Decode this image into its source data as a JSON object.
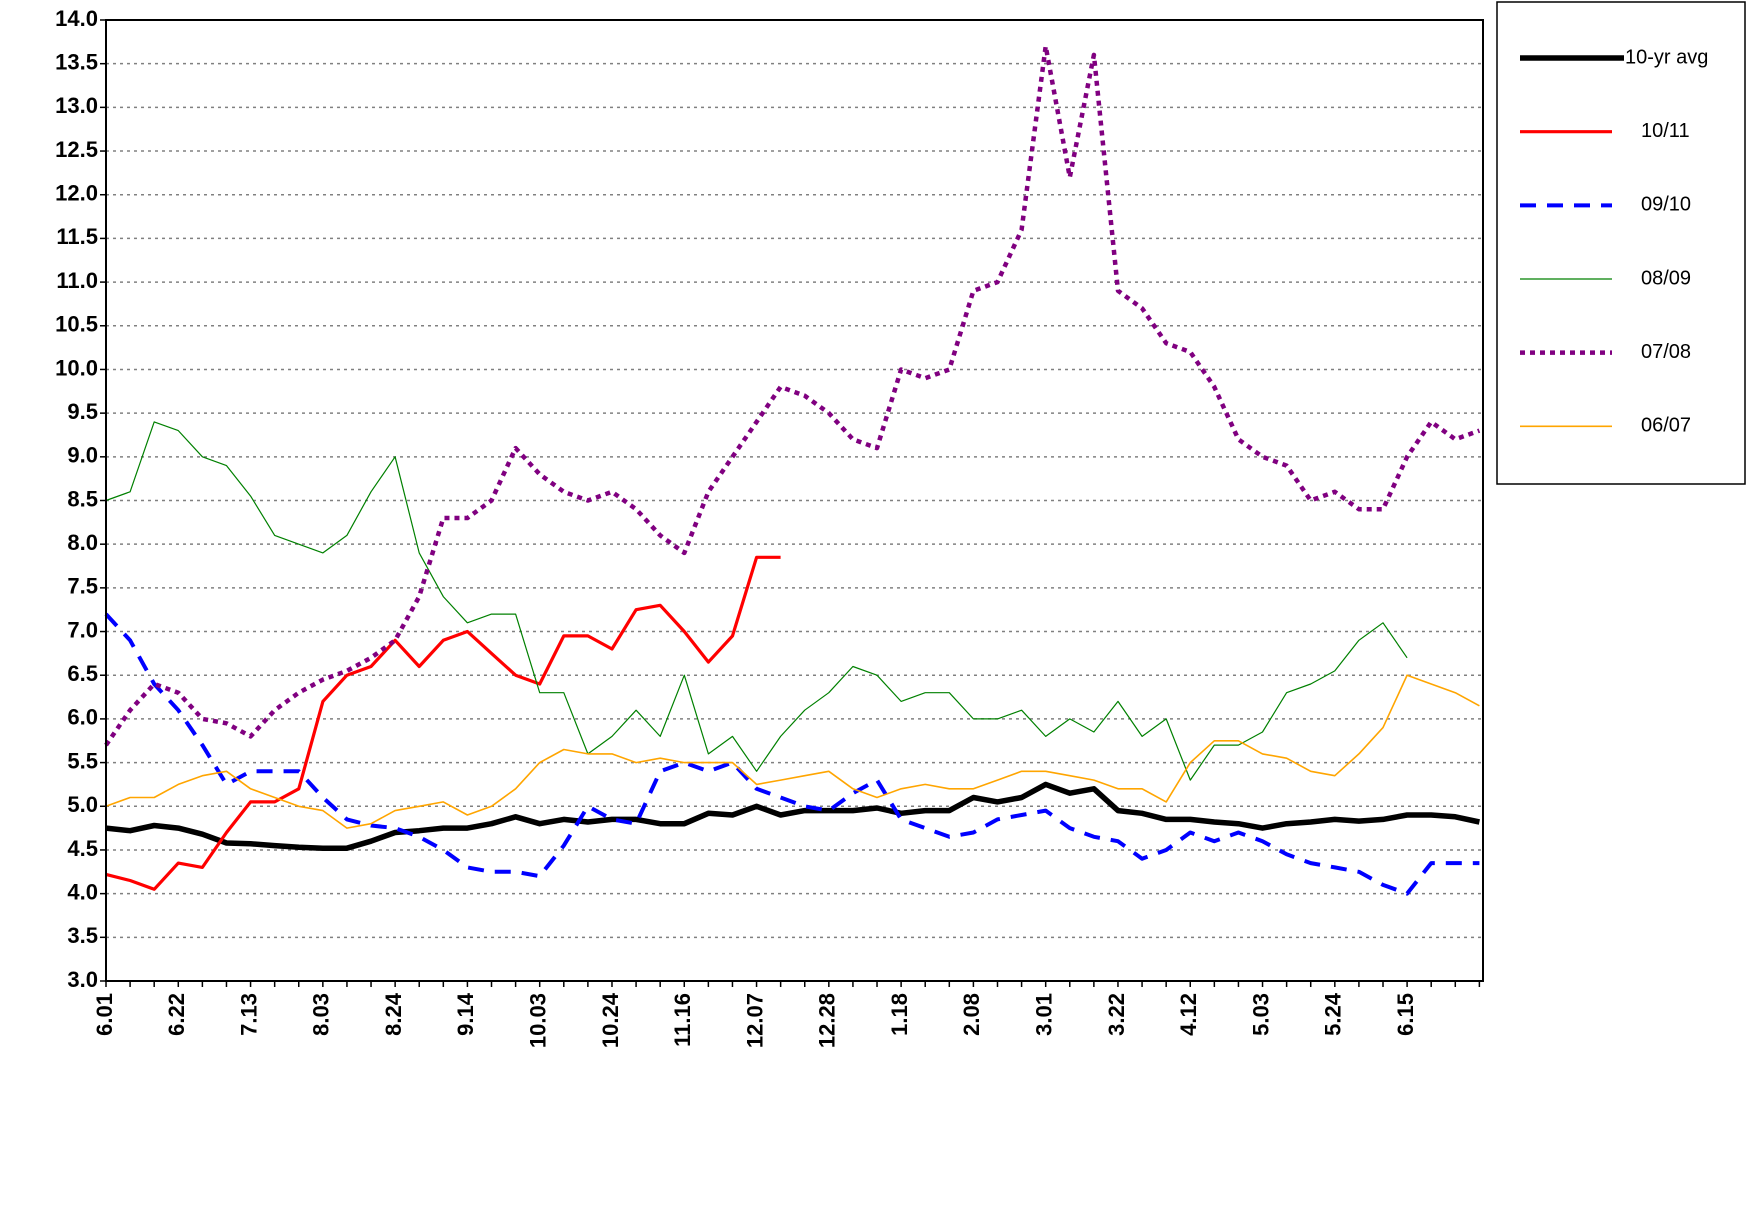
{
  "chart_data": {
    "type": "line",
    "categories": [
      "6.01",
      null,
      null,
      "6.22",
      null,
      null,
      "7.13",
      null,
      null,
      "8.03",
      null,
      null,
      "8.24",
      null,
      null,
      "9.14",
      null,
      null,
      "10.03",
      null,
      null,
      "10.24",
      null,
      null,
      "11.16",
      null,
      null,
      "12.07",
      null,
      null,
      "12.28",
      null,
      null,
      "1.18",
      null,
      null,
      "2.08",
      null,
      null,
      "3.01",
      null,
      null,
      "3.22",
      null,
      null,
      "4.12",
      null,
      null,
      "5.03",
      null,
      null,
      "5.24",
      null,
      null,
      "6.15",
      null,
      null,
      null
    ],
    "series": [
      {
        "name": "10-yr avg",
        "color": "#000000",
        "style": "bold",
        "values": [
          4.75,
          4.72,
          4.78,
          4.75,
          4.68,
          4.58,
          4.57,
          4.55,
          4.53,
          4.52,
          4.52,
          4.6,
          4.7,
          4.72,
          4.75,
          4.75,
          4.8,
          4.88,
          4.8,
          4.85,
          4.82,
          4.85,
          4.85,
          4.8,
          4.8,
          4.92,
          4.9,
          5.0,
          4.9,
          4.95,
          4.95,
          4.95,
          4.98,
          4.92,
          4.95,
          4.95,
          5.1,
          5.05,
          5.1,
          5.25,
          5.15,
          5.2,
          4.95,
          4.92,
          4.85,
          4.85,
          4.82,
          4.8,
          4.75,
          4.8,
          4.82,
          4.85,
          4.83,
          4.85,
          4.9,
          4.9,
          4.88,
          4.82
        ]
      },
      {
        "name": "10/11",
        "color": "#ff0000",
        "style": "solid",
        "values": [
          4.22,
          4.15,
          4.05,
          4.35,
          4.3,
          4.7,
          5.05,
          5.05,
          5.2,
          6.2,
          6.5,
          6.6,
          6.9,
          6.6,
          6.9,
          7.0,
          6.75,
          6.5,
          6.4,
          6.95,
          6.95,
          6.8,
          7.25,
          7.3,
          7.0,
          6.65,
          6.95,
          7.85,
          7.85,
          null,
          null,
          null,
          null,
          null,
          null,
          null,
          null,
          null,
          null,
          null,
          null,
          null,
          null,
          null,
          null,
          null,
          null,
          null,
          null,
          null,
          null,
          null,
          null,
          null,
          null,
          null,
          null,
          null
        ]
      },
      {
        "name": "09/10",
        "color": "#0000ff",
        "style": "dashed",
        "values": [
          7.2,
          6.9,
          6.4,
          6.1,
          5.7,
          5.25,
          5.4,
          5.4,
          5.4,
          5.1,
          4.85,
          4.78,
          4.75,
          4.65,
          4.5,
          4.3,
          4.25,
          4.25,
          4.2,
          4.55,
          5.0,
          4.85,
          4.8,
          5.4,
          5.5,
          5.4,
          5.5,
          5.2,
          5.1,
          5.0,
          4.95,
          5.15,
          5.3,
          4.85,
          4.75,
          4.65,
          4.7,
          4.85,
          4.9,
          4.95,
          4.75,
          4.65,
          4.6,
          4.4,
          4.5,
          4.7,
          4.6,
          4.7,
          4.6,
          4.45,
          4.35,
          4.3,
          4.25,
          4.1,
          4.0,
          4.35,
          4.35,
          4.35
        ]
      },
      {
        "name": "08/09",
        "color": "#008000",
        "style": "thin",
        "values": [
          8.5,
          8.6,
          9.4,
          9.3,
          9.0,
          8.9,
          8.55,
          8.1,
          8.0,
          7.9,
          8.1,
          8.6,
          9.0,
          7.9,
          7.4,
          7.1,
          7.2,
          7.2,
          6.3,
          6.3,
          5.6,
          5.8,
          6.1,
          5.8,
          6.5,
          5.6,
          5.8,
          5.4,
          5.8,
          6.1,
          6.3,
          6.6,
          6.5,
          6.2,
          6.3,
          6.3,
          6.0,
          6.0,
          6.1,
          5.8,
          6.0,
          5.85,
          6.2,
          5.8,
          6.0,
          5.3,
          5.7,
          5.7,
          5.85,
          6.3,
          6.4,
          6.55,
          6.9,
          7.1,
          6.7,
          null,
          null,
          null
        ]
      },
      {
        "name": "07/08",
        "color": "#800080",
        "style": "dotted",
        "values": [
          5.7,
          6.1,
          6.4,
          6.3,
          6.0,
          5.95,
          5.8,
          6.1,
          6.3,
          6.45,
          6.55,
          6.7,
          6.9,
          7.4,
          8.3,
          8.3,
          8.5,
          9.1,
          8.8,
          8.6,
          8.5,
          8.6,
          8.4,
          8.1,
          7.9,
          8.6,
          9.0,
          9.4,
          9.8,
          9.7,
          9.5,
          9.2,
          9.1,
          10.0,
          9.9,
          10.0,
          10.9,
          11.0,
          11.6,
          13.7,
          12.2,
          13.6,
          10.9,
          10.7,
          10.3,
          10.2,
          9.8,
          9.2,
          9.0,
          8.9,
          8.5,
          8.6,
          8.4,
          8.4,
          9.0,
          9.4,
          9.2,
          9.3
        ]
      },
      {
        "name": "06/07",
        "color": "#ffa500",
        "style": "solid-thin",
        "values": [
          5.0,
          5.1,
          5.1,
          5.25,
          5.35,
          5.4,
          5.2,
          5.1,
          5.0,
          4.95,
          4.75,
          4.8,
          4.95,
          5.0,
          5.05,
          4.9,
          5.0,
          5.2,
          5.5,
          5.65,
          5.6,
          5.6,
          5.5,
          5.55,
          5.5,
          5.5,
          5.5,
          5.25,
          5.3,
          5.35,
          5.4,
          5.2,
          5.1,
          5.2,
          5.25,
          5.2,
          5.2,
          5.3,
          5.4,
          5.4,
          5.35,
          5.3,
          5.2,
          5.2,
          5.05,
          5.5,
          5.75,
          5.75,
          5.6,
          5.55,
          5.4,
          5.35,
          5.6,
          5.9,
          6.5,
          6.4,
          6.3,
          6.15
        ]
      }
    ],
    "ylim": [
      3,
      14
    ],
    "yticks": [
      {
        "value": 3,
        "label": "3.0"
      },
      {
        "value": 3.5,
        "label": "3.5"
      },
      {
        "value": 4,
        "label": "4.0"
      },
      {
        "value": 4.5,
        "label": "4.5"
      },
      {
        "value": 5,
        "label": "5.0"
      },
      {
        "value": 5.5,
        "label": "5.5"
      },
      {
        "value": 6,
        "label": "6.0"
      },
      {
        "value": 6.5,
        "label": "6.5"
      },
      {
        "value": 7,
        "label": "7.0"
      },
      {
        "value": 7.5,
        "label": "7.5"
      },
      {
        "value": 8,
        "label": "8.0"
      },
      {
        "value": 8.5,
        "label": "8.5"
      },
      {
        "value": 9,
        "label": "9.0"
      },
      {
        "value": 9.5,
        "label": "9.5"
      },
      {
        "value": 10,
        "label": "10.0"
      },
      {
        "value": 10.5,
        "label": "10.5"
      },
      {
        "value": 11,
        "label": "11.0"
      },
      {
        "value": 11.5,
        "label": "11.5"
      },
      {
        "value": 12,
        "label": "12.0"
      },
      {
        "value": 12.5,
        "label": "12.5"
      },
      {
        "value": 13,
        "label": "13.0"
      },
      {
        "value": 13.5,
        "label": "13.5"
      },
      {
        "value": 14,
        "label": "14.0"
      }
    ],
    "grid": true,
    "legend": "right"
  }
}
